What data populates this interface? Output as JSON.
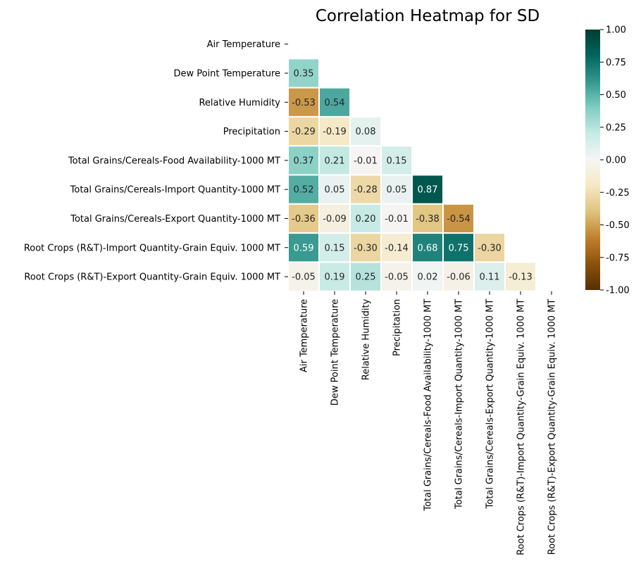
{
  "chart_data": {
    "type": "heatmap",
    "title": "Correlation Heatmap for SD",
    "labels": [
      "Air Temperature",
      "Dew Point Temperature",
      "Relative Humidity",
      "Precipitation",
      "Total Grains/Cereals-Food Availability-1000 MT",
      "Total Grains/Cereals-Import Quantity-1000 MT",
      "Total Grains/Cereals-Export Quantity-1000 MT",
      "Root Crops (R&T)-Import Quantity-Grain Equiv. 1000 MT",
      "Root Crops (R&T)-Export Quantity-Grain Equiv. 1000 MT"
    ],
    "matrix_lower": [
      [],
      [
        0.35
      ],
      [
        -0.53,
        0.54
      ],
      [
        -0.29,
        -0.19,
        0.08
      ],
      [
        0.37,
        0.21,
        -0.01,
        0.15
      ],
      [
        0.52,
        0.05,
        -0.28,
        0.05,
        0.87
      ],
      [
        -0.36,
        -0.09,
        0.2,
        -0.01,
        -0.38,
        -0.54
      ],
      [
        0.59,
        0.15,
        -0.3,
        -0.14,
        0.68,
        0.75,
        -0.3
      ],
      [
        -0.05,
        0.19,
        0.25,
        -0.05,
        0.02,
        -0.06,
        0.11,
        -0.13
      ]
    ],
    "value_format": "2 decimals",
    "mask": "upper triangle including diagonal",
    "colormap": "BrBG",
    "vmin": -1.0,
    "vmax": 1.0,
    "colorbar_ticks": [
      "-1.00",
      "-0.75",
      "-0.50",
      "-0.25",
      "0.00",
      "0.25",
      "0.50",
      "0.75",
      "1.00"
    ],
    "cell_border_color": "#ffffff"
  }
}
